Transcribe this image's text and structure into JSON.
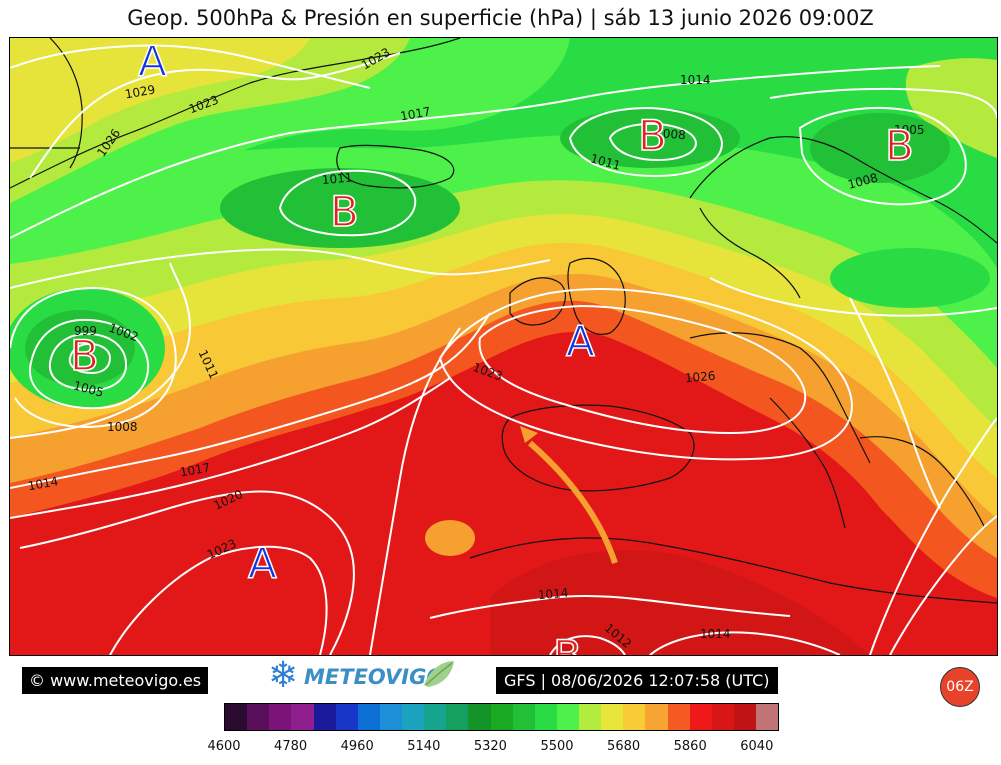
{
  "title": "Geop. 500hPa & Presión en superficie (hPa) | sáb 13 junio 2026 09:00Z",
  "pressure_labels": [
    "1023",
    "1029",
    "1023",
    "1026",
    "1017",
    "1014",
    "1008",
    "1011",
    "1011",
    "1005",
    "1008",
    "999",
    "1002",
    "1011",
    "1005",
    "1008",
    "1014",
    "1017",
    "1020",
    "1023",
    "1023",
    "1026",
    "1014",
    "1012",
    "1014"
  ],
  "centers": {
    "A": [
      "A",
      "A",
      "A",
      "A"
    ],
    "B": [
      "B",
      "B",
      "B",
      "B",
      "B"
    ]
  },
  "footer": {
    "copyright": "© www.meteovigo.es",
    "logo_text": "METEOVIGO",
    "model_run": "GFS | 08/06/2026 12:07:58 (UTC)",
    "run_badge": "06Z"
  },
  "scale": {
    "ticks": [
      "4600",
      "4780",
      "4960",
      "5140",
      "5320",
      "5500",
      "5680",
      "5860",
      "6040"
    ],
    "colors": [
      "#2a0a2e",
      "#5a0f5c",
      "#7a1478",
      "#8f1f8e",
      "#1a1a9a",
      "#1836c8",
      "#0c6fd6",
      "#1c8fd8",
      "#1ba2bf",
      "#16a48e",
      "#16a060",
      "#149428",
      "#1aaa22",
      "#22c036",
      "#2adc44",
      "#4ef04a",
      "#b2ec3e",
      "#e8e63a",
      "#f8cc36",
      "#f8a432",
      "#f45a22",
      "#ee1a1a",
      "#d81616",
      "#c01414",
      "#c07474"
    ]
  }
}
